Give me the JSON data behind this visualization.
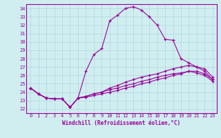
{
  "xlabel": "Windchill (Refroidissement éolien,°C)",
  "bg_color": "#d0eef0",
  "line_color": "#990099",
  "xlim": [
    -0.5,
    23.5
  ],
  "ylim": [
    21.5,
    34.5
  ],
  "xticks": [
    0,
    1,
    2,
    3,
    4,
    5,
    6,
    7,
    8,
    9,
    10,
    11,
    12,
    13,
    14,
    15,
    16,
    17,
    18,
    19,
    20,
    21,
    22,
    23
  ],
  "yticks": [
    22,
    23,
    24,
    25,
    26,
    27,
    28,
    29,
    30,
    31,
    32,
    33,
    34
  ],
  "series": [
    [
      24.5,
      23.8,
      23.3,
      23.2,
      23.2,
      22.2,
      23.3,
      26.5,
      28.5,
      29.2,
      32.5,
      33.2,
      34.0,
      34.2,
      33.8,
      33.0,
      32.0,
      30.3,
      30.2,
      28.0,
      27.5,
      27.0,
      26.5,
      25.5
    ],
    [
      24.5,
      23.8,
      23.3,
      23.2,
      23.2,
      22.2,
      23.3,
      23.5,
      23.8,
      24.0,
      24.5,
      24.8,
      25.2,
      25.5,
      25.8,
      26.0,
      26.2,
      26.5,
      26.8,
      27.0,
      27.2,
      27.0,
      26.8,
      25.8
    ],
    [
      24.5,
      23.8,
      23.3,
      23.2,
      23.2,
      22.2,
      23.3,
      23.5,
      23.8,
      24.0,
      24.3,
      24.5,
      24.8,
      25.0,
      25.3,
      25.5,
      25.8,
      26.0,
      26.2,
      26.3,
      26.5,
      26.5,
      26.2,
      25.5
    ],
    [
      24.5,
      23.8,
      23.3,
      23.2,
      23.2,
      22.2,
      23.3,
      23.4,
      23.6,
      23.8,
      24.0,
      24.2,
      24.5,
      24.7,
      25.0,
      25.2,
      25.5,
      25.7,
      26.0,
      26.2,
      26.5,
      26.3,
      26.0,
      25.3
    ]
  ]
}
